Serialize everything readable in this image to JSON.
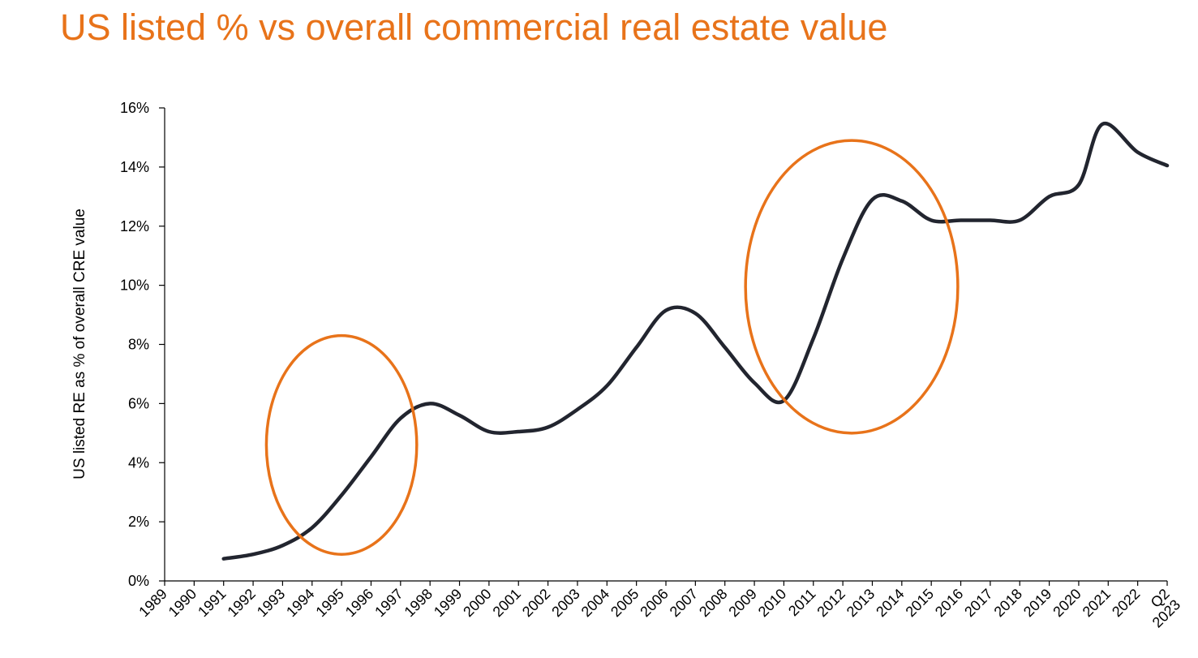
{
  "title": "US listed % vs overall commercial real estate value",
  "colors": {
    "title": "#E8731A",
    "line": "#22252F",
    "highlight": "#E8731A",
    "axis": "#000000"
  },
  "chart_data": {
    "type": "line",
    "title": "US listed % vs overall commercial real estate value",
    "xlabel": "",
    "ylabel": "US listed RE as % of overall CRE value",
    "categories": [
      "1989",
      "1990",
      "1991",
      "1992",
      "1993",
      "1994",
      "1995",
      "1996",
      "1997",
      "1998",
      "1999",
      "2000",
      "2001",
      "2002",
      "2003",
      "2004",
      "2005",
      "2006",
      "2007",
      "2008",
      "2009",
      "2010",
      "2011",
      "2012",
      "2013",
      "2014",
      "2015",
      "2016",
      "2017",
      "2018",
      "2019",
      "2020",
      "2021",
      "2022",
      "Q2 2023"
    ],
    "ylim": [
      0,
      16
    ],
    "yticks": [
      0,
      2,
      4,
      6,
      8,
      10,
      12,
      14,
      16
    ],
    "ytick_labels": [
      "0%",
      "2%",
      "4%",
      "6%",
      "8%",
      "10%",
      "12%",
      "14%",
      "16%"
    ],
    "grid": false,
    "legend": "none",
    "series": [
      {
        "name": "US listed RE as % of overall CRE value",
        "points": [
          {
            "x": 2,
            "y": 0.75
          },
          {
            "x": 3,
            "y": 0.9
          },
          {
            "x": 4,
            "y": 1.2
          },
          {
            "x": 5,
            "y": 1.8
          },
          {
            "x": 6,
            "y": 2.9
          },
          {
            "x": 7,
            "y": 4.2
          },
          {
            "x": 8,
            "y": 5.5
          },
          {
            "x": 9,
            "y": 6.0
          },
          {
            "x": 10,
            "y": 5.6
          },
          {
            "x": 11,
            "y": 5.05
          },
          {
            "x": 12,
            "y": 5.05
          },
          {
            "x": 13,
            "y": 5.2
          },
          {
            "x": 14,
            "y": 5.8
          },
          {
            "x": 15,
            "y": 6.6
          },
          {
            "x": 16,
            "y": 7.9
          },
          {
            "x": 17,
            "y": 9.15
          },
          {
            "x": 18,
            "y": 9.05
          },
          {
            "x": 19,
            "y": 7.9
          },
          {
            "x": 20,
            "y": 6.7
          },
          {
            "x": 21,
            "y": 6.1
          },
          {
            "x": 22,
            "y": 8.2
          },
          {
            "x": 23,
            "y": 10.9
          },
          {
            "x": 24,
            "y": 12.9
          },
          {
            "x": 25,
            "y": 12.85
          },
          {
            "x": 26,
            "y": 12.2
          },
          {
            "x": 27,
            "y": 12.2
          },
          {
            "x": 28,
            "y": 12.2
          },
          {
            "x": 29,
            "y": 12.2
          },
          {
            "x": 30,
            "y": 13.0
          },
          {
            "x": 31,
            "y": 13.4
          },
          {
            "x": 31.8,
            "y": 15.45
          },
          {
            "x": 33,
            "y": 14.5
          },
          {
            "x": 34,
            "y": 14.05
          }
        ]
      }
    ],
    "annotations": [
      {
        "type": "ellipse",
        "cx": 6,
        "cy": 4.6,
        "rx": 2.55,
        "ry": 3.7
      },
      {
        "type": "ellipse",
        "cx": 23.3,
        "cy": 9.95,
        "rx": 3.6,
        "ry": 4.95
      }
    ]
  }
}
